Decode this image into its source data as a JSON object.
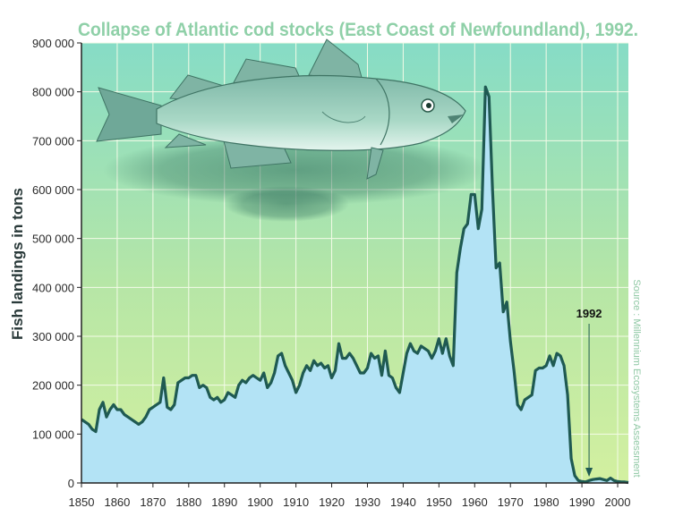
{
  "chart_data": {
    "type": "area",
    "title": "Collapse of Atlantic cod stocks (East Coast of Newfoundland), 1992.",
    "ylabel": "Fish landings in tons",
    "xlabel": "",
    "source": "Source : Millennium Ecosystems Assessment",
    "xlim": [
      1850,
      2003
    ],
    "ylim": [
      0,
      900000
    ],
    "x_ticks": [
      "1850",
      "1860",
      "1870",
      "1880",
      "1890",
      "1900",
      "1910",
      "1920",
      "1930",
      "1940",
      "1950",
      "1960",
      "1970",
      "1980",
      "1990",
      "2000"
    ],
    "y_ticks": [
      "0",
      "100 000",
      "200 000",
      "300 000",
      "400 000",
      "500 000",
      "600 000",
      "700 000",
      "800 000",
      "900 000"
    ],
    "grid": true,
    "annotation": {
      "label": "1992",
      "x": 1992,
      "y": 0
    },
    "colors": {
      "fill": "#b3e3f5",
      "line": "#1f5a52",
      "bg_top": "#86dcc6",
      "bg_bottom": "#d0f0a0"
    },
    "series": [
      {
        "x": [
          1850,
          1851,
          1852,
          1853,
          1854,
          1855,
          1856,
          1857,
          1858,
          1859,
          1860,
          1861,
          1862,
          1863,
          1864,
          1865,
          1866,
          1867,
          1868,
          1869,
          1870,
          1871,
          1872,
          1873,
          1874,
          1875,
          1876,
          1877,
          1878,
          1879,
          1880,
          1881,
          1882,
          1883,
          1884,
          1885,
          1886,
          1887,
          1888,
          1889,
          1890,
          1891,
          1892,
          1893,
          1894,
          1895,
          1896,
          1897,
          1898,
          1899,
          1900,
          1901,
          1902,
          1903,
          1904,
          1905,
          1906,
          1907,
          1908,
          1909,
          1910,
          1911,
          1912,
          1913,
          1914,
          1915,
          1916,
          1917,
          1918,
          1919,
          1920,
          1921,
          1922,
          1923,
          1924,
          1925,
          1926,
          1927,
          1928,
          1929,
          1930,
          1931,
          1932,
          1933,
          1934,
          1935,
          1936,
          1937,
          1938,
          1939,
          1940,
          1941,
          1942,
          1943,
          1944,
          1945,
          1946,
          1947,
          1948,
          1949,
          1950,
          1951,
          1952,
          1953,
          1954,
          1955,
          1956,
          1957,
          1958,
          1959,
          1960,
          1961,
          1962,
          1963,
          1964,
          1965,
          1966,
          1967,
          1968,
          1969,
          1970,
          1971,
          1972,
          1973,
          1974,
          1975,
          1976,
          1977,
          1978,
          1979,
          1980,
          1981,
          1982,
          1983,
          1984,
          1985,
          1986,
          1987,
          1988,
          1989,
          1990,
          1991,
          1992,
          1993,
          1994,
          1995,
          1996,
          1997,
          1998,
          1999,
          2000,
          2001,
          2002,
          2003
        ],
        "values": [
          130000,
          125000,
          120000,
          110000,
          105000,
          150000,
          165000,
          135000,
          150000,
          160000,
          150000,
          150000,
          140000,
          135000,
          130000,
          125000,
          120000,
          125000,
          135000,
          150000,
          155000,
          160000,
          165000,
          215000,
          155000,
          150000,
          160000,
          205000,
          210000,
          215000,
          215000,
          220000,
          220000,
          195000,
          200000,
          195000,
          175000,
          170000,
          175000,
          165000,
          170000,
          185000,
          180000,
          175000,
          200000,
          210000,
          205000,
          215000,
          220000,
          215000,
          210000,
          225000,
          195000,
          205000,
          225000,
          260000,
          265000,
          240000,
          225000,
          210000,
          185000,
          200000,
          225000,
          240000,
          230000,
          250000,
          240000,
          245000,
          235000,
          240000,
          215000,
          230000,
          285000,
          255000,
          255000,
          265000,
          255000,
          240000,
          225000,
          225000,
          235000,
          265000,
          255000,
          260000,
          220000,
          270000,
          220000,
          215000,
          195000,
          185000,
          225000,
          265000,
          285000,
          270000,
          265000,
          280000,
          275000,
          270000,
          255000,
          270000,
          295000,
          265000,
          295000,
          260000,
          240000,
          430000,
          480000,
          520000,
          530000,
          590000,
          590000,
          520000,
          560000,
          810000,
          790000,
          600000,
          440000,
          450000,
          350000,
          370000,
          290000,
          230000,
          160000,
          150000,
          170000,
          175000,
          180000,
          230000,
          235000,
          235000,
          240000,
          260000,
          240000,
          265000,
          260000,
          240000,
          180000,
          50000,
          15000,
          5000,
          3000,
          2000,
          5000,
          7000,
          8000,
          9000,
          7000,
          5000,
          10000,
          5000,
          3000,
          2000,
          2000,
          1000
        ]
      }
    ]
  }
}
